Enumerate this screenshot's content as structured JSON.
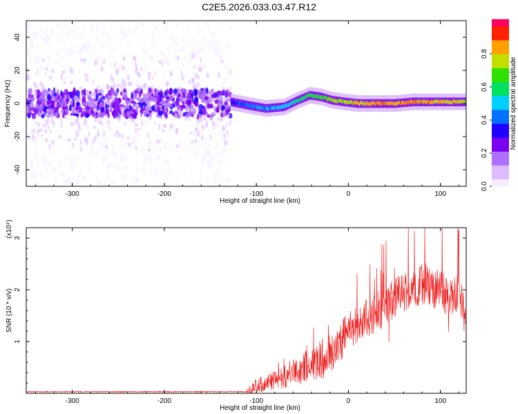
{
  "figure": {
    "title": "C2E5.2026.033.03.47.R12"
  },
  "colors": {
    "axis": "#000000",
    "snr_line": "#ee2222",
    "colormap": [
      "#f6ecff",
      "#dcbcff",
      "#b070ff",
      "#7a00f0",
      "#2000ff",
      "#0070ff",
      "#00d0ff",
      "#00e060",
      "#30e000",
      "#c0e000",
      "#ffa000",
      "#ff2000",
      "#ff0060"
    ]
  },
  "chart_data": [
    {
      "type": "heatmap",
      "name": "spectrogram",
      "title": "",
      "xlabel": "Height of straight line (km)",
      "ylabel": "Frequency (Hz)",
      "xlim": [
        -350,
        128
      ],
      "ylim": [
        -50,
        50
      ],
      "xticks": [
        -300,
        -200,
        -100,
        0,
        100
      ],
      "yticks": [
        -40,
        -20,
        0,
        20,
        40
      ],
      "xtick_labels": [
        "-300",
        "-200",
        "-100",
        "0",
        "100"
      ],
      "ytick_labels": [
        "-40",
        "-20",
        "0",
        "20",
        "40"
      ],
      "colorbar": {
        "label": "Normalized spectral amplitude",
        "range": [
          0,
          1
        ],
        "ticks": [
          0.0,
          0.2,
          0.4,
          0.6,
          0.8
        ],
        "tick_labels": [
          "0.0",
          "0.2",
          "0.4",
          "0.6",
          "0.8"
        ]
      },
      "noise_region": {
        "x_range": [
          -350,
          -128
        ],
        "freq_spread": 50,
        "typical_amplitude": 0.15
      },
      "signal_track": {
        "x": [
          -128,
          -110,
          -90,
          -70,
          -55,
          -42,
          -30,
          -18,
          -5,
          10,
          30,
          50,
          70,
          90,
          110,
          128
        ],
        "freq": [
          1,
          -1,
          -3,
          -2,
          2,
          5,
          4,
          2,
          1,
          0,
          0,
          0,
          1,
          1,
          1,
          1
        ],
        "amplitude": [
          0.35,
          0.45,
          0.5,
          0.55,
          0.6,
          0.65,
          0.7,
          0.75,
          0.8,
          0.85,
          0.9,
          0.92,
          0.9,
          0.88,
          0.85,
          0.8
        ]
      }
    },
    {
      "type": "line",
      "name": "snr",
      "title": "",
      "xlabel": "Height of straight line (km)",
      "ylabel": "SNR (10 * v/v)",
      "scale_label": "(x10⁴)",
      "xlim": [
        -350,
        128
      ],
      "ylim": [
        0,
        3.2
      ],
      "xticks": [
        -300,
        -200,
        -100,
        0,
        100
      ],
      "yticks": [
        1,
        2,
        3
      ],
      "xtick_labels": [
        "-300",
        "-200",
        "-100",
        "0",
        "100"
      ],
      "ytick_labels": [
        "1",
        "2",
        "3"
      ],
      "envelope": {
        "x": [
          -350,
          -200,
          -110,
          -100,
          -80,
          -60,
          -40,
          -20,
          0,
          20,
          40,
          60,
          80,
          100,
          110,
          120,
          128
        ],
        "y": [
          0.02,
          0.02,
          0.02,
          0.15,
          0.25,
          0.4,
          0.55,
          0.75,
          1.2,
          1.45,
          1.7,
          1.95,
          2.1,
          2.0,
          1.8,
          1.9,
          1.4
        ]
      },
      "noise_amplitude": 0.4,
      "peak": {
        "x": 120,
        "y": 3.15
      }
    }
  ]
}
